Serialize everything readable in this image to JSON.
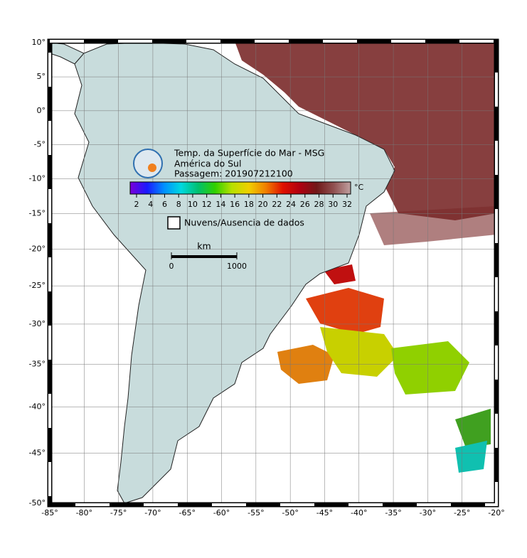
{
  "map": {
    "title": "Temp. da Superfície do Mar - MSG",
    "subtitle": "América do Sul",
    "pass": "Passagem: 201907212100",
    "unit": "°C",
    "colorbar_ticks": [
      2,
      4,
      6,
      8,
      10,
      12,
      14,
      16,
      18,
      20,
      22,
      24,
      26,
      28,
      30,
      32
    ],
    "colorbar_colors": [
      "#7a00d8",
      "#1a1aff",
      "#0090ff",
      "#00d8e0",
      "#00c070",
      "#30d000",
      "#b8e000",
      "#f0d000",
      "#f08000",
      "#e01000",
      "#b00010",
      "#701818",
      "#905050",
      "#c0a0a0"
    ],
    "cloud_legend": "Nuvens/Ausencia de dados",
    "scale": {
      "unit": "km",
      "ticks": [
        0,
        1000
      ]
    },
    "lon_ticks": [
      {
        "value": -85,
        "label": "-85°"
      },
      {
        "value": -80,
        "label": "-80°"
      },
      {
        "value": -75,
        "label": "-75°"
      },
      {
        "value": -70,
        "label": "-70°"
      },
      {
        "value": -65,
        "label": "-65°"
      },
      {
        "value": -60,
        "label": "-60°"
      },
      {
        "value": -55,
        "label": "-55°"
      },
      {
        "value": -50,
        "label": "-50°"
      },
      {
        "value": -45,
        "label": "-45°"
      },
      {
        "value": -40,
        "label": "-40°"
      },
      {
        "value": -35,
        "label": "-35°"
      },
      {
        "value": -30,
        "label": "-30°"
      },
      {
        "value": -25,
        "label": "-25°"
      },
      {
        "value": -20,
        "label": "-20°"
      }
    ],
    "lat_ticks": [
      {
        "value": 10,
        "label": "10°"
      },
      {
        "value": 5,
        "label": "5°"
      },
      {
        "value": 0,
        "label": "0°"
      },
      {
        "value": -5,
        "label": "-5°"
      },
      {
        "value": -10,
        "label": "-10°"
      },
      {
        "value": -15,
        "label": "-15°"
      },
      {
        "value": -20,
        "label": "-20°"
      },
      {
        "value": -25,
        "label": "-25°"
      },
      {
        "value": -30,
        "label": "-30°"
      },
      {
        "value": -35,
        "label": "-35°"
      },
      {
        "value": -40,
        "label": "-40°"
      },
      {
        "value": -45,
        "label": "-45°"
      },
      {
        "value": -50,
        "label": "-50°"
      }
    ]
  }
}
